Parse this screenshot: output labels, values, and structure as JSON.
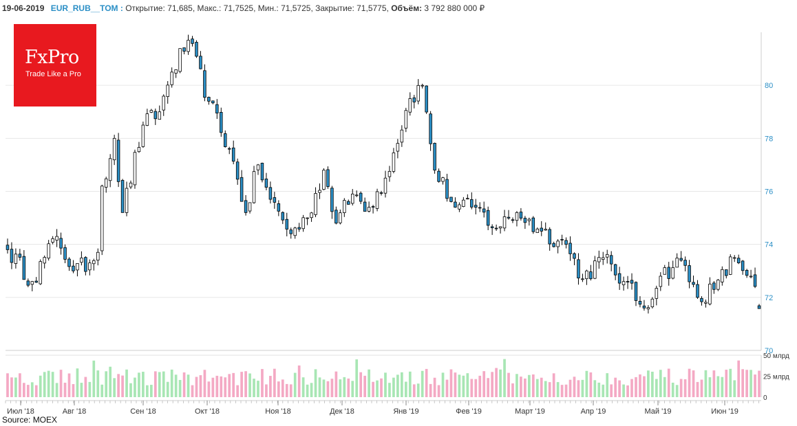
{
  "header": {
    "date": "19-06-2019",
    "ticker": "EUR_RUB__TOM :",
    "ohlc_text": "Открытие: 71,685, Макс.: 71,7525, Мин.: 71,5725, Закрытие: 71,5775,",
    "volume_label": "Объём:",
    "volume_value": "3 792 880 000 ₽"
  },
  "logo": {
    "name": "FxPro",
    "tagline": "Trade Like a Pro"
  },
  "source": "Source: MOEX",
  "colors": {
    "up_fill": "#ffffff",
    "down_fill": "#2b8fc6",
    "candle_stroke": "#000000",
    "volume_up": "#a8e6b4",
    "volume_down": "#f4a9c4",
    "axis_text": "#2b8fc6",
    "grid": "#e6e6e6",
    "logo_bg": "#e8191f"
  },
  "chart_data": {
    "type": "candlestick",
    "price_axis": {
      "ylim": [
        70,
        82
      ],
      "ticks": [
        70,
        72,
        74,
        76,
        78,
        80
      ]
    },
    "volume_axis": {
      "ylim": [
        0,
        50
      ],
      "ticks": [
        0,
        25,
        50
      ],
      "tick_labels": [
        "0",
        "25 млрд",
        "50 млрд"
      ]
    },
    "x_tick_labels": [
      "Июл '18",
      "Авг '18",
      "Сен '18",
      "Окт '18",
      "Ноя '18",
      "Дек '18",
      "Янв '19",
      "Фев '19",
      "Март '19",
      "Апр '19",
      "Май '19",
      "Июн '19"
    ],
    "key_points": [
      {
        "x": 0,
        "close": 73.8
      },
      {
        "x": 6,
        "close": 72.6
      },
      {
        "x": 12,
        "close": 74.3
      },
      {
        "x": 16,
        "close": 73.0
      },
      {
        "x": 20,
        "close": 73.3
      },
      {
        "x": 22,
        "close": 73.7
      },
      {
        "x": 23,
        "close": 76.2
      },
      {
        "x": 26,
        "close": 78.0
      },
      {
        "x": 28,
        "close": 75.2
      },
      {
        "x": 33,
        "close": 78.5
      },
      {
        "x": 37,
        "close": 79.0
      },
      {
        "x": 40,
        "close": 80.5
      },
      {
        "x": 44,
        "close": 81.7
      },
      {
        "x": 49,
        "close": 79.4
      },
      {
        "x": 54,
        "close": 77.6
      },
      {
        "x": 58,
        "close": 75.2
      },
      {
        "x": 61,
        "close": 77.0
      },
      {
        "x": 64,
        "close": 75.7
      },
      {
        "x": 69,
        "close": 74.4
      },
      {
        "x": 73,
        "close": 75.0
      },
      {
        "x": 77,
        "close": 76.8
      },
      {
        "x": 80,
        "close": 74.8
      },
      {
        "x": 84,
        "close": 75.9
      },
      {
        "x": 88,
        "close": 75.4
      },
      {
        "x": 92,
        "close": 76.5
      },
      {
        "x": 98,
        "close": 79.5
      },
      {
        "x": 101,
        "close": 80.0
      },
      {
        "x": 104,
        "close": 76.8
      },
      {
        "x": 109,
        "close": 75.4
      },
      {
        "x": 114,
        "close": 75.4
      },
      {
        "x": 119,
        "close": 74.6
      },
      {
        "x": 124,
        "close": 75.2
      },
      {
        "x": 130,
        "close": 74.5
      },
      {
        "x": 136,
        "close": 74.0
      },
      {
        "x": 140,
        "close": 72.7
      },
      {
        "x": 145,
        "close": 73.5
      },
      {
        "x": 150,
        "close": 72.6
      },
      {
        "x": 155,
        "close": 71.6
      },
      {
        "x": 159,
        "close": 72.8
      },
      {
        "x": 164,
        "close": 73.4
      },
      {
        "x": 168,
        "close": 72.0
      },
      {
        "x": 172,
        "close": 72.3
      },
      {
        "x": 177,
        "close": 73.5
      },
      {
        "x": 181,
        "close": 72.8
      },
      {
        "x": 183,
        "close": 71.58
      }
    ],
    "last_candle": {
      "open": 71.685,
      "high": 71.7525,
      "low": 71.5725,
      "close": 71.5775
    }
  }
}
